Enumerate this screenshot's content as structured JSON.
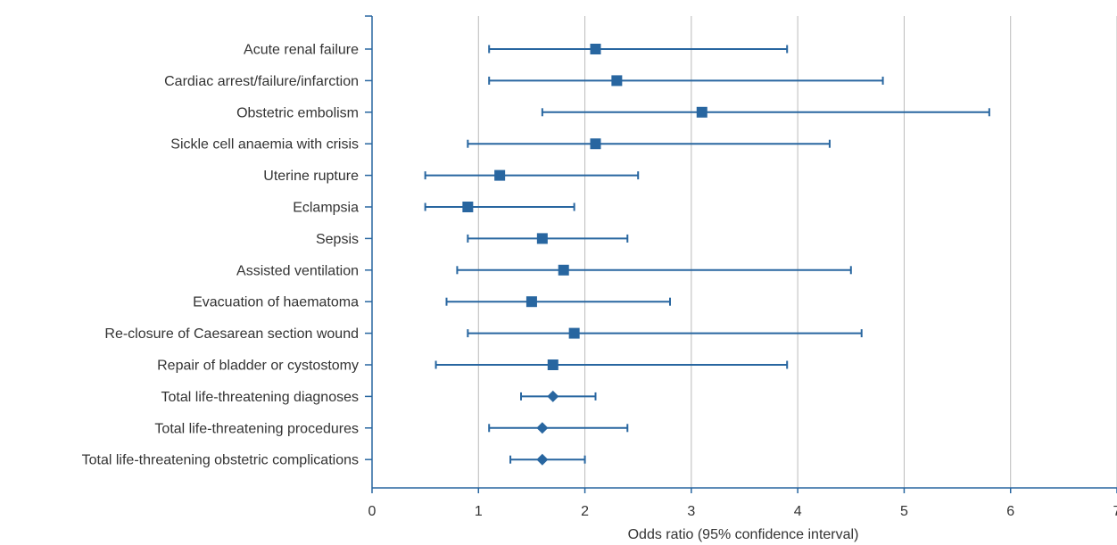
{
  "chart_data": {
    "type": "scatter",
    "subtype": "forest-plot",
    "title": "",
    "xlabel": "Odds ratio (95% confidence interval)",
    "ylabel": "",
    "xlim": [
      0,
      7
    ],
    "xticks": [
      0,
      1,
      2,
      3,
      4,
      5,
      6,
      7
    ],
    "grid": "vertical",
    "colors": {
      "marker": "#2866a0",
      "axis": "#2866a0",
      "grid": "#bbbbbb"
    },
    "rows": [
      {
        "label": "Acute renal failure",
        "or": 2.1,
        "lower": 1.1,
        "upper": 3.9,
        "marker": "square"
      },
      {
        "label": "Cardiac arrest/failure/infarction",
        "or": 2.3,
        "lower": 1.1,
        "upper": 4.8,
        "marker": "square"
      },
      {
        "label": "Obstetric embolism",
        "or": 3.1,
        "lower": 1.6,
        "upper": 5.8,
        "marker": "square"
      },
      {
        "label": "Sickle cell anaemia with crisis",
        "or": 2.1,
        "lower": 0.9,
        "upper": 4.3,
        "marker": "square"
      },
      {
        "label": "Uterine rupture",
        "or": 1.2,
        "lower": 0.5,
        "upper": 2.5,
        "marker": "square"
      },
      {
        "label": "Eclampsia",
        "or": 0.9,
        "lower": 0.5,
        "upper": 1.9,
        "marker": "square"
      },
      {
        "label": "Sepsis",
        "or": 1.6,
        "lower": 0.9,
        "upper": 2.4,
        "marker": "square"
      },
      {
        "label": "Assisted ventilation",
        "or": 1.8,
        "lower": 0.8,
        "upper": 4.5,
        "marker": "square"
      },
      {
        "label": "Evacuation of haematoma",
        "or": 1.5,
        "lower": 0.7,
        "upper": 2.8,
        "marker": "square"
      },
      {
        "label": "Re-closure of Caesarean section wound",
        "or": 1.9,
        "lower": 0.9,
        "upper": 4.6,
        "marker": "square"
      },
      {
        "label": "Repair of bladder or cystostomy",
        "or": 1.7,
        "lower": 0.6,
        "upper": 3.9,
        "marker": "square"
      },
      {
        "label": "Total life-threatening diagnoses",
        "or": 1.7,
        "lower": 1.4,
        "upper": 2.1,
        "marker": "diamond"
      },
      {
        "label": "Total life-threatening procedures",
        "or": 1.6,
        "lower": 1.1,
        "upper": 2.4,
        "marker": "diamond"
      },
      {
        "label": "Total life-threatening obstetric complications",
        "or": 1.6,
        "lower": 1.3,
        "upper": 2.0,
        "marker": "diamond"
      }
    ]
  }
}
